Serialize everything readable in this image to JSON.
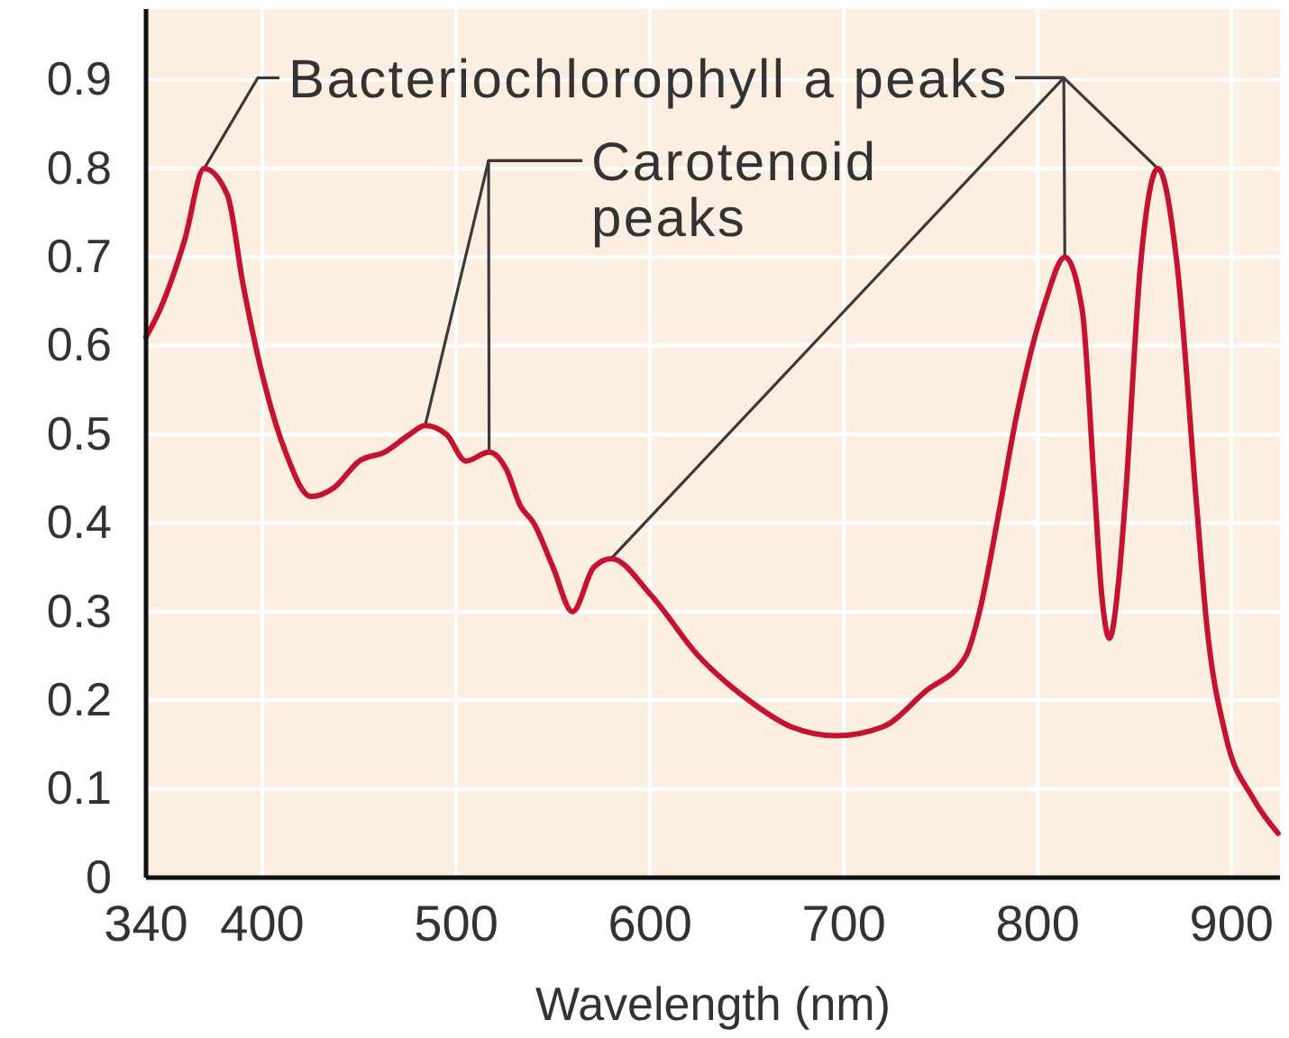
{
  "chart_data": {
    "type": "line",
    "xlabel": "Wavelength (nm)",
    "x": [
      340,
      347,
      360,
      370,
      382,
      390,
      402,
      412,
      425,
      437,
      450,
      463,
      476,
      484,
      495,
      505,
      517,
      526,
      533,
      540,
      550,
      560,
      571,
      580,
      600,
      625,
      651,
      673,
      696,
      720,
      742,
      763,
      770,
      779,
      789,
      804,
      814,
      823,
      829,
      833,
      837,
      842,
      845,
      853,
      862,
      872,
      882,
      887,
      897,
      911,
      924
    ],
    "series": [
      {
        "color": "#c41230",
        "values": [
          0.61,
          0.64,
          0.72,
          0.8,
          0.77,
          0.67,
          0.55,
          0.48,
          0.43,
          0.44,
          0.47,
          0.48,
          0.5,
          0.51,
          0.5,
          0.47,
          0.48,
          0.46,
          0.42,
          0.4,
          0.35,
          0.3,
          0.35,
          0.36,
          0.32,
          0.25,
          0.2,
          0.17,
          0.16,
          0.17,
          0.21,
          0.25,
          0.3,
          0.4,
          0.52,
          0.65,
          0.7,
          0.64,
          0.45,
          0.32,
          0.27,
          0.34,
          0.42,
          0.69,
          0.8,
          0.69,
          0.42,
          0.29,
          0.16,
          0.09,
          0.05
        ]
      }
    ],
    "xlim": [
      340,
      925
    ],
    "ylim": [
      0,
      0.98
    ],
    "xticks": [
      340,
      400,
      500,
      600,
      700,
      800,
      900
    ],
    "yticks": [
      0,
      0.1,
      0.2,
      0.3,
      0.4,
      0.5,
      0.6,
      0.7,
      0.8,
      0.9
    ],
    "grid": true,
    "annotations": [
      {
        "text": "Bacteriochlorophyll a peaks",
        "x": 370,
        "y": 0.8
      },
      {
        "text": "Carotenoid peaks",
        "x": 484,
        "y": 0.51
      }
    ]
  }
}
